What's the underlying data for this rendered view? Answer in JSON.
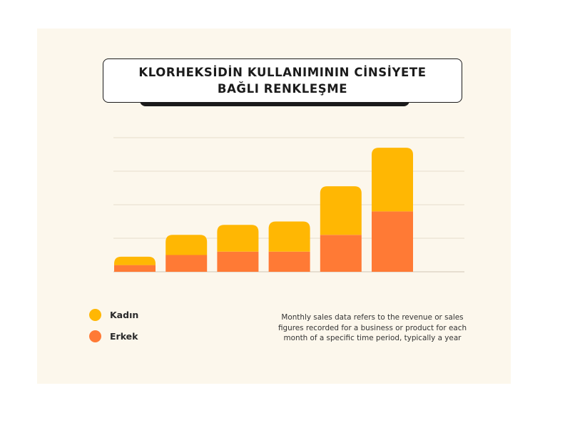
{
  "chart_data": {
    "type": "bar",
    "stacked": true,
    "title": "KLORHEKSİDİN KULLANIMININ  CİNSİYETE\nBAĞLI RENKLEŞME",
    "categories": [
      "",
      "",
      "",
      "",
      "",
      ""
    ],
    "series": [
      {
        "name": "Erkek",
        "color": "#ff7a35",
        "values": [
          0.4,
          1.0,
          1.2,
          1.2,
          2.2,
          3.6
        ]
      },
      {
        "name": "Kadın",
        "color": "#ffb703",
        "values": [
          0.5,
          1.2,
          1.6,
          1.8,
          2.9,
          3.8
        ]
      }
    ],
    "ylim": [
      0,
      8
    ],
    "grid": true,
    "legend": "bottom-left",
    "note": "Monthly sales data refers to the revenue or sales\nfigures recorded for a business or product for each\nmonth of a specific time period, typically a year"
  }
}
